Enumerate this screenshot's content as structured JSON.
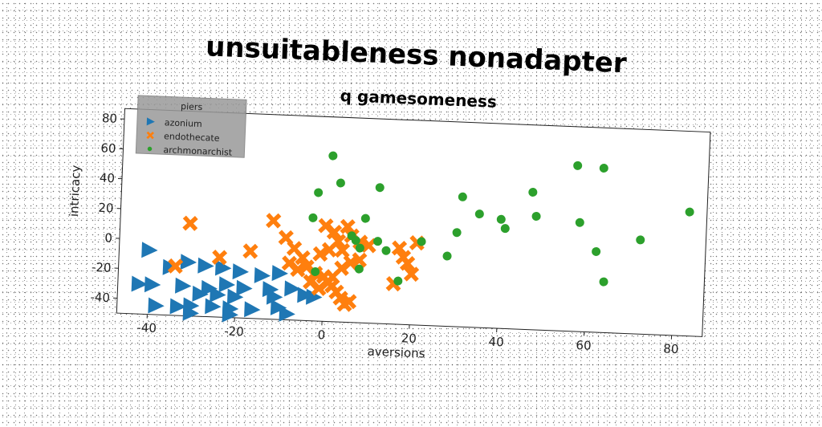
{
  "chart_data": {
    "type": "scatter",
    "title": "unsuitableness nonadapter",
    "subtitle": "q gamesomeness",
    "xlabel": "aversions",
    "ylabel": "intricacy",
    "xlim": [
      -47,
      87
    ],
    "ylim": [
      -50,
      87
    ],
    "xticks": [
      -40,
      -20,
      0,
      20,
      40,
      60,
      80
    ],
    "yticks": [
      -40,
      -20,
      0,
      20,
      40,
      60,
      80
    ],
    "grid": false,
    "legend": {
      "title": "piers",
      "placement": "top-left"
    },
    "series": [
      {
        "name": "azonium",
        "marker": "triangle-right",
        "color": "#1f77b4",
        "points": [
          [
            -40,
            -7
          ],
          [
            -35,
            -18
          ],
          [
            -31,
            -14
          ],
          [
            -27,
            -16
          ],
          [
            -23,
            -17
          ],
          [
            -19,
            -19
          ],
          [
            -14,
            -21
          ],
          [
            -10,
            -19
          ],
          [
            -42,
            -30
          ],
          [
            -39,
            -30
          ],
          [
            -32,
            -30
          ],
          [
            -26,
            -31
          ],
          [
            -22,
            -28
          ],
          [
            -18,
            -30
          ],
          [
            -12,
            -30
          ],
          [
            -7,
            -29
          ],
          [
            -2,
            -34
          ],
          [
            -38,
            -44
          ],
          [
            -33,
            -44
          ],
          [
            -30,
            -43
          ],
          [
            -25,
            -43
          ],
          [
            -21,
            -44
          ],
          [
            -16,
            -44
          ],
          [
            -10,
            -42
          ],
          [
            -8,
            -46
          ],
          [
            -28,
            -35
          ],
          [
            -24,
            -35
          ],
          [
            -20,
            -36
          ],
          [
            -11,
            -35
          ],
          [
            -4,
            -33
          ],
          [
            -30,
            -48
          ],
          [
            -21,
            -48
          ]
        ]
      },
      {
        "name": "endothecate",
        "marker": "x",
        "color": "#ff7f0e",
        "points": [
          [
            -31,
            12
          ],
          [
            -12,
            16
          ],
          [
            -17,
            -5
          ],
          [
            -24,
            -10
          ],
          [
            -34,
            -17
          ],
          [
            -9,
            5
          ],
          [
            -7,
            -2
          ],
          [
            -5,
            -8
          ],
          [
            -4,
            -14
          ],
          [
            -2,
            -18
          ],
          [
            0,
            -20
          ],
          [
            1,
            -24
          ],
          [
            2,
            -26
          ],
          [
            3,
            -30
          ],
          [
            4,
            -34
          ],
          [
            5,
            -38
          ],
          [
            6,
            -36
          ],
          [
            -6,
            -16
          ],
          [
            -8,
            -12
          ],
          [
            -3,
            -24
          ],
          [
            -1,
            -28
          ],
          [
            2,
            -20
          ],
          [
            4,
            -14
          ],
          [
            6,
            -10
          ],
          [
            8,
            -8
          ],
          [
            0,
            14
          ],
          [
            2,
            10
          ],
          [
            3,
            4
          ],
          [
            4,
            -2
          ],
          [
            6,
            8
          ],
          [
            8,
            4
          ],
          [
            5,
            14
          ],
          [
            10,
            2
          ],
          [
            18,
            -5
          ],
          [
            19,
            -9
          ],
          [
            20,
            -16
          ],
          [
            16,
            -23
          ],
          [
            21,
            5
          ],
          [
            17,
            1
          ],
          [
            -1,
            -5
          ],
          [
            1,
            -2
          ]
        ]
      },
      {
        "name": "archmonarchist",
        "marker": "circle",
        "color": "#2ca02c",
        "points": [
          [
            1,
            61
          ],
          [
            3,
            43
          ],
          [
            -2,
            36
          ],
          [
            -3,
            19
          ],
          [
            6,
            8
          ],
          [
            7,
            5
          ],
          [
            9,
            20
          ],
          [
            12,
            41
          ],
          [
            8,
            0
          ],
          [
            14,
            -1
          ],
          [
            12,
            5
          ],
          [
            -2,
            -17
          ],
          [
            8,
            -14
          ],
          [
            17,
            -21
          ],
          [
            22,
            6
          ],
          [
            28,
            -3
          ],
          [
            31,
            37
          ],
          [
            30,
            13
          ],
          [
            35,
            26
          ],
          [
            40,
            23
          ],
          [
            41,
            17
          ],
          [
            47,
            42
          ],
          [
            48,
            26
          ],
          [
            57,
            61
          ],
          [
            58,
            23
          ],
          [
            63,
            60
          ],
          [
            62,
            4
          ],
          [
            64,
            -16
          ],
          [
            72,
            13
          ],
          [
            83,
            33
          ]
        ]
      }
    ]
  }
}
